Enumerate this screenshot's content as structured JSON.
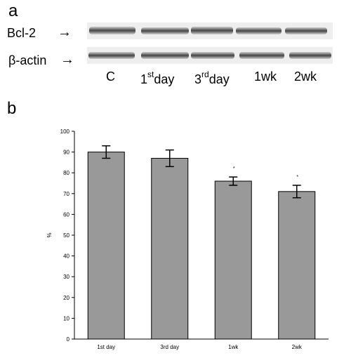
{
  "panel_a": {
    "letter": "a",
    "bands": [
      {
        "name": "Bcl-2",
        "arrow": "→"
      },
      {
        "name": "β-actin",
        "arrow": "→"
      }
    ],
    "lanes": [
      {
        "main": "C",
        "sup": "",
        "tail": ""
      },
      {
        "main": "1",
        "sup": "st",
        "tail": "day"
      },
      {
        "main": "3",
        "sup": "rd",
        "tail": "day"
      },
      {
        "main": "1wk",
        "sup": "",
        "tail": ""
      },
      {
        "main": "2wk",
        "sup": "",
        "tail": ""
      }
    ]
  },
  "panel_b": {
    "letter": "b"
  },
  "chart_data": {
    "type": "bar",
    "categories": [
      "1st day",
      "3rd day",
      "1wk",
      "2wk"
    ],
    "values": [
      90,
      87,
      76,
      71
    ],
    "errors": [
      3,
      4,
      2,
      3
    ],
    "significance": [
      "",
      "",
      "*",
      "*"
    ],
    "ylabel": "%",
    "xlabel": "",
    "ylim": [
      0,
      100
    ],
    "yticks": [
      "0",
      "10",
      "20",
      "30",
      "40",
      "50",
      "60",
      "70",
      "80",
      "90",
      "100"
    ],
    "grid": false,
    "bar_color": "#999999"
  }
}
